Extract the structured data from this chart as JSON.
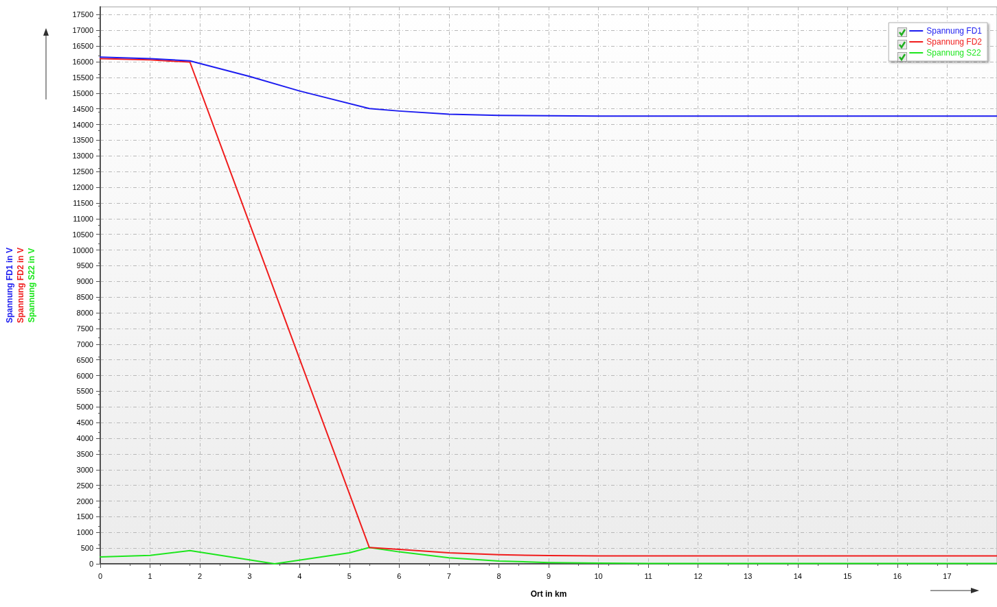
{
  "chart_data": {
    "type": "line",
    "xlabel": "Ort in km",
    "ylabel": "Spannung FD1 in V\nSpannung FD2 in V\nSpannung S22 in V",
    "xlim": [
      0,
      18
    ],
    "xticks": [
      0,
      1,
      2,
      3,
      4,
      5,
      6,
      7,
      8,
      9,
      10,
      11,
      12,
      13,
      14,
      15,
      16,
      17
    ],
    "ylim": [
      0,
      17750
    ],
    "yticks": [
      0,
      500,
      1000,
      1500,
      2000,
      2500,
      3000,
      3500,
      4000,
      4500,
      5000,
      5500,
      6000,
      6500,
      7000,
      7500,
      8000,
      8500,
      9000,
      9500,
      10000,
      10500,
      11000,
      11500,
      12000,
      12500,
      13000,
      13500,
      14000,
      14500,
      15000,
      15500,
      16000,
      16500,
      17000,
      17500
    ],
    "grid": true,
    "legend": "top right",
    "marker": "none",
    "line_style": "solid",
    "series": [
      {
        "name": "Spannung FD1",
        "color": "#1c1cf0",
        "x": [
          0,
          1,
          1.8,
          3,
          4,
          5.4,
          6,
          7,
          8,
          9,
          10,
          18
        ],
        "values": [
          16150,
          16100,
          16030,
          15530,
          15070,
          14510,
          14430,
          14330,
          14290,
          14280,
          14270,
          14270
        ]
      },
      {
        "name": "Spannung FD2",
        "color": "#f01c1c",
        "x": [
          0,
          1,
          1.8,
          5.4,
          6,
          7,
          8,
          9,
          10,
          18
        ],
        "values": [
          16100,
          16060,
          15990,
          520,
          460,
          350,
          290,
          260,
          250,
          250
        ]
      },
      {
        "name": "Spannung S22",
        "color": "#1ce61c",
        "x": [
          0,
          1,
          1.8,
          3.5,
          5,
          5.4,
          6,
          7,
          8,
          9,
          10,
          11,
          18
        ],
        "values": [
          220,
          270,
          420,
          0,
          350,
          520,
          380,
          190,
          90,
          40,
          20,
          10,
          10
        ]
      }
    ]
  }
}
